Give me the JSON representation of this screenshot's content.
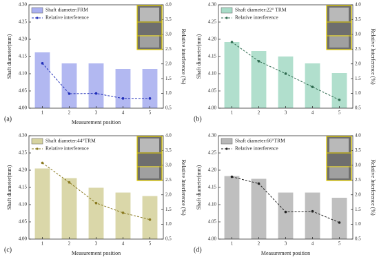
{
  "chart_data": [
    {
      "type": "bar",
      "panel_label": "(a)",
      "xlabel": "Measurement position",
      "ylabel": "Shaft diameter(mm)",
      "y2label": "Relative interference (%)",
      "categories": [
        "1",
        "2",
        "3",
        "4",
        "5"
      ],
      "legend": "upper left",
      "ylim": [
        4.0,
        4.3
      ],
      "yticks": [
        {
          "value": 4.0,
          "label": "4.00"
        },
        4.05,
        {
          "value": 4.1,
          "label": "4.10"
        },
        4.15,
        {
          "value": 4.2,
          "label": "4.20"
        },
        4.25,
        {
          "value": 4.3,
          "label": "4.30"
        }
      ],
      "y2lim": [
        0.5,
        4.0
      ],
      "y2ticks": [
        0.5,
        {
          "value": 1.0,
          "label": "1.0"
        },
        1.5,
        {
          "value": 2.0,
          "label": "2.0"
        },
        2.5,
        {
          "value": 3.0,
          "label": "3.0"
        },
        3.5,
        {
          "value": 4.0,
          "label": "4.0"
        }
      ],
      "series": [
        {
          "name": "Shaft diameter:FRM",
          "color": "#aab0f0",
          "values": [
            4.162,
            4.13,
            4.13,
            4.114,
            4.114
          ]
        },
        {
          "name": "Relative interference",
          "color": "#1f2db8",
          "axis": "y2",
          "values": [
            2.02,
            0.99,
            1.0,
            0.83,
            0.83
          ]
        }
      ]
    },
    {
      "type": "bar",
      "panel_label": "(b)",
      "ylabel": "Shaft diameter(mm)",
      "y2label": "Relative Interference (%)",
      "categories": [
        "1",
        "2",
        "3",
        "4",
        "5"
      ],
      "legend": "upper left",
      "ylim": [
        4.0,
        4.3
      ],
      "yticks": [
        {
          "value": 4.0,
          "label": "4.00"
        },
        4.05,
        {
          "value": 4.1,
          "label": "4.10"
        },
        4.15,
        {
          "value": 4.2,
          "label": "4.20"
        },
        4.25,
        {
          "value": 4.3,
          "label": "4.30"
        }
      ],
      "y2lim": [
        0.5,
        4.0
      ],
      "y2ticks": [
        0.5,
        {
          "value": 1.0,
          "label": "1.0"
        },
        1.5,
        {
          "value": 2.0,
          "label": "2.0"
        },
        2.5,
        {
          "value": 3.0,
          "label": "3.0"
        },
        3.5,
        {
          "value": 4.0,
          "label": "4.0"
        }
      ],
      "series": [
        {
          "name": "Shaft diameter:22° TRM",
          "color": "#a8dcc8",
          "values": [
            4.192,
            4.166,
            4.15,
            4.13,
            4.102
          ]
        },
        {
          "name": "Relative interference",
          "color": "#2f6b50",
          "axis": "y2",
          "values": [
            2.74,
            2.09,
            1.67,
            1.22,
            0.78
          ]
        }
      ]
    },
    {
      "type": "bar",
      "panel_label": "(c)",
      "xlabel": "Measurement position",
      "ylabel": "Shaft diameter(mm)",
      "y2label": "Relative Interference (%)",
      "categories": [
        "1",
        "2",
        "3",
        "4",
        "5"
      ],
      "legend": "upper left",
      "ylim": [
        4.0,
        4.3
      ],
      "yticks": [
        {
          "value": 4.0,
          "label": "4.00"
        },
        4.05,
        {
          "value": 4.1,
          "label": "4.10"
        },
        4.15,
        {
          "value": 4.2,
          "label": "4.20"
        },
        4.25,
        {
          "value": 4.3,
          "label": "4.30"
        }
      ],
      "y2lim": [
        0.5,
        4.0
      ],
      "y2ticks": [
        0.5,
        {
          "value": 1.0,
          "label": "1.0"
        },
        1.5,
        {
          "value": 2.0,
          "label": "2.0"
        },
        2.5,
        {
          "value": 3.0,
          "label": "3.0"
        },
        3.5,
        {
          "value": 4.0,
          "label": "4.0"
        }
      ],
      "series": [
        {
          "name": "Shaft diameter:44°TRM",
          "color": "#d6d3a0",
          "values": [
            4.205,
            4.177,
            4.149,
            4.135,
            4.125
          ]
        },
        {
          "name": "Relative interference",
          "color": "#8a7a20",
          "axis": "y2",
          "values": [
            3.08,
            2.42,
            1.72,
            1.39,
            1.16
          ]
        }
      ]
    },
    {
      "type": "bar",
      "panel_label": "(d)",
      "xlabel": "Measurement position",
      "ylabel": "Shaft diameter(mm)",
      "y2label": "Relative Interference (%)",
      "categories": [
        "1",
        "2",
        "3",
        "4",
        "5"
      ],
      "legend": "upper left",
      "ylim": [
        4.0,
        4.3
      ],
      "yticks": [
        {
          "value": 4.0,
          "label": "4.00"
        },
        4.05,
        {
          "value": 4.1,
          "label": "4.10"
        },
        4.15,
        {
          "value": 4.2,
          "label": "4.20"
        },
        4.25,
        {
          "value": 4.3,
          "label": "4.30"
        }
      ],
      "y2lim": [
        0.5,
        4.0
      ],
      "y2ticks": [
        0.5,
        {
          "value": 1.0,
          "label": "1.0"
        },
        1.5,
        {
          "value": 2.0,
          "label": "2.0"
        },
        2.5,
        {
          "value": 3.0,
          "label": "3.0"
        },
        3.5,
        {
          "value": 4.0,
          "label": "4.0"
        }
      ],
      "series": [
        {
          "name": "Shaft diameter:66°TRM",
          "color": "#b8b8b8",
          "values": [
            4.183,
            4.175,
            4.135,
            4.135,
            4.12
          ]
        },
        {
          "name": "Relative interference",
          "color": "#222222",
          "axis": "y2",
          "values": [
            2.61,
            2.38,
            1.42,
            1.44,
            1.06
          ]
        }
      ]
    }
  ]
}
